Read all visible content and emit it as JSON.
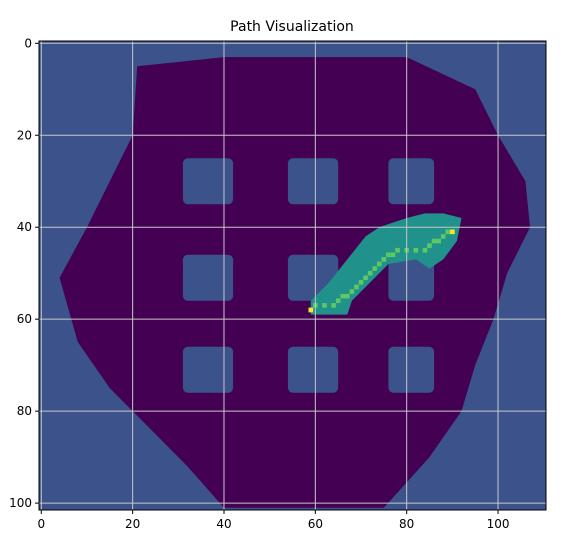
{
  "chart_data": {
    "type": "heatmap",
    "title": "Path Visualization",
    "xlabel": "",
    "ylabel": "",
    "xlim": [
      -0.5,
      110.5
    ],
    "ylim": [
      101.5,
      -0.5
    ],
    "xticks": [
      0,
      20,
      40,
      60,
      80,
      100
    ],
    "yticks": [
      0,
      20,
      40,
      60,
      80,
      100
    ],
    "grid": true,
    "colormap": "viridis",
    "colors": {
      "unknown": "#3b528b",
      "free": "#440154",
      "search_region": "#21918c",
      "path": "#5ec962",
      "endpoints": "#fde725",
      "grid": "#c8c8c8"
    },
    "free_region_polygon": [
      [
        21,
        5
      ],
      [
        40,
        3
      ],
      [
        80,
        3
      ],
      [
        95,
        10
      ],
      [
        100,
        20
      ],
      [
        106,
        30
      ],
      [
        107,
        40
      ],
      [
        102,
        50
      ],
      [
        99,
        60
      ],
      [
        95,
        70
      ],
      [
        92,
        80
      ],
      [
        85,
        90
      ],
      [
        75,
        101
      ],
      [
        40,
        101
      ],
      [
        32,
        92
      ],
      [
        25,
        85
      ],
      [
        15,
        75
      ],
      [
        8,
        65
      ],
      [
        4,
        51
      ],
      [
        10,
        40
      ],
      [
        15,
        30
      ],
      [
        20,
        20
      ]
    ],
    "obstacles": [
      {
        "x0": 31,
        "y0": 25,
        "x1": 42,
        "y1": 35
      },
      {
        "x0": 54,
        "y0": 25,
        "x1": 65,
        "y1": 35
      },
      {
        "x0": 76,
        "y0": 25,
        "x1": 86,
        "y1": 35
      },
      {
        "x0": 31,
        "y0": 46,
        "x1": 42,
        "y1": 56
      },
      {
        "x0": 54,
        "y0": 46,
        "x1": 65,
        "y1": 56
      },
      {
        "x0": 76,
        "y0": 46,
        "x1": 86,
        "y1": 56
      },
      {
        "x0": 31,
        "y0": 66,
        "x1": 42,
        "y1": 76
      },
      {
        "x0": 54,
        "y0": 66,
        "x1": 65,
        "y1": 76
      },
      {
        "x0": 76,
        "y0": 66,
        "x1": 86,
        "y1": 76
      }
    ],
    "search_region_polygon": [
      [
        59,
        56
      ],
      [
        63,
        52
      ],
      [
        67,
        47
      ],
      [
        71,
        42
      ],
      [
        74,
        40
      ],
      [
        80,
        38
      ],
      [
        84,
        37
      ],
      [
        88,
        37
      ],
      [
        92,
        38
      ],
      [
        91,
        43
      ],
      [
        88,
        47
      ],
      [
        85,
        49
      ],
      [
        82,
        47
      ],
      [
        76,
        48
      ],
      [
        72,
        52
      ],
      [
        68,
        56
      ],
      [
        67,
        59
      ],
      [
        59,
        59
      ]
    ],
    "path": {
      "x": [
        59,
        60,
        62,
        64,
        65,
        66,
        67,
        68,
        69,
        70,
        71,
        72,
        73,
        74,
        75,
        76,
        77,
        78,
        80,
        82,
        84,
        85,
        86,
        87,
        88,
        89,
        90
      ],
      "y": [
        58,
        57,
        57,
        57,
        56,
        55,
        55,
        54,
        53,
        52,
        51,
        50,
        49,
        48,
        47,
        46,
        46,
        45,
        45,
        45,
        45,
        44,
        43,
        43,
        42,
        41,
        41
      ]
    },
    "start": {
      "x": 59,
      "y": 58
    },
    "goal": {
      "x": 90,
      "y": 41
    }
  }
}
